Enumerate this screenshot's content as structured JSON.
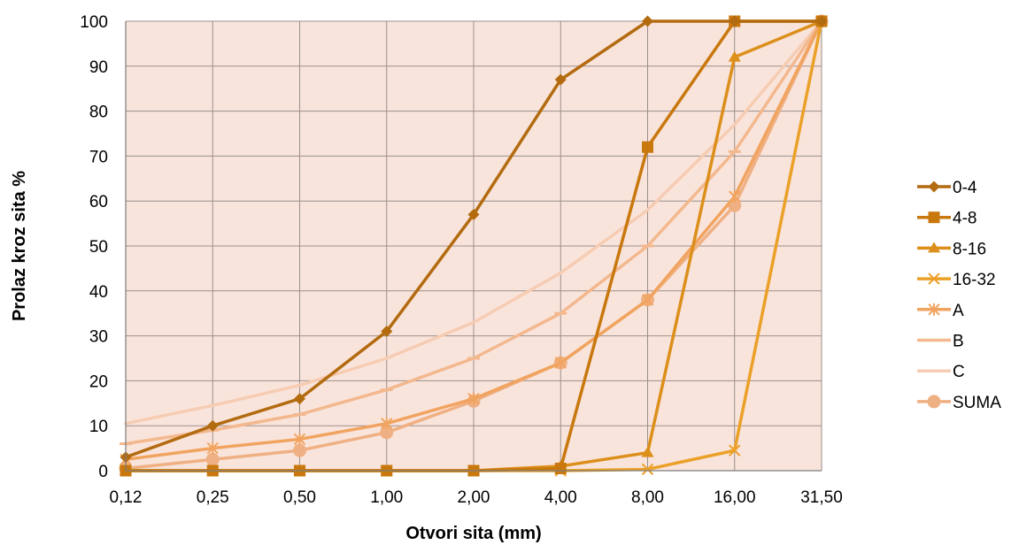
{
  "chart_data": {
    "type": "line",
    "xlabel": "Otvori sita (mm)",
    "ylabel": "Prolaz kroz sita %",
    "categories": [
      "0,12",
      "0,25",
      "0,50",
      "1,00",
      "2,00",
      "4,00",
      "8,00",
      "16,00",
      "31,50"
    ],
    "ylim": [
      0,
      100
    ],
    "yticks": [
      0,
      10,
      20,
      30,
      40,
      50,
      60,
      70,
      80,
      90,
      100
    ],
    "grid": true,
    "legend_position": "right",
    "plot_background": "#f9e4dc",
    "series": [
      {
        "name": "0-4",
        "marker": "diamond",
        "color": "#b36b10",
        "values": [
          3,
          10,
          16,
          31,
          57,
          87,
          100,
          100,
          100
        ]
      },
      {
        "name": "4-8",
        "marker": "square",
        "color": "#c8780d",
        "values": [
          0,
          0,
          0,
          0,
          0,
          0.5,
          72,
          100,
          100
        ]
      },
      {
        "name": "8-16",
        "marker": "triangle",
        "color": "#dc8f1a",
        "values": [
          0,
          0,
          0,
          0,
          0,
          1,
          4,
          92,
          100
        ]
      },
      {
        "name": "16-32",
        "marker": "x",
        "color": "#eba028",
        "values": [
          0,
          0,
          0,
          0,
          0,
          0,
          0.3,
          4.5,
          100
        ]
      },
      {
        "name": "A",
        "marker": "star",
        "color": "#f1a460",
        "values": [
          2.5,
          5,
          7,
          10.5,
          16,
          24,
          38,
          61,
          100
        ]
      },
      {
        "name": "B",
        "marker": "dash",
        "color": "#f3b88e",
        "values": [
          6,
          9,
          12.5,
          18,
          25,
          35,
          50,
          71,
          100
        ]
      },
      {
        "name": "C",
        "marker": "none",
        "color": "#f6ccb2",
        "values": [
          10.5,
          14.5,
          19,
          25,
          33,
          44,
          58,
          77,
          100
        ]
      },
      {
        "name": "SUMA",
        "marker": "circle",
        "color": "#efb083",
        "values": [
          0.5,
          2.5,
          4.5,
          8.5,
          15.5,
          24,
          38,
          59,
          100
        ]
      }
    ]
  }
}
